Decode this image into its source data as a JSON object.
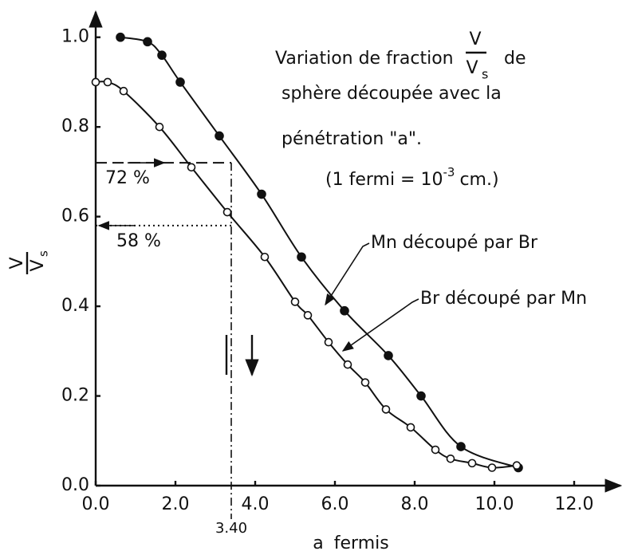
{
  "chart_data": {
    "type": "line",
    "title": {
      "lines": [
        "Variation de fraction",
        "de",
        "sphère découpée avec la",
        "pénétration \"a\"."
      ],
      "fraction": {
        "numerator": "V",
        "denominator": "V",
        "subscript": "s"
      }
    },
    "note": {
      "text": "(1 fermi = 10",
      "superscript": "-3",
      "after": "cm.)"
    },
    "x_label": "a   fermis",
    "y_label": {
      "numerator": "V",
      "denominator": "V",
      "subscript": "s"
    },
    "series": [
      {
        "name": "Mn découpé par Br",
        "color": "#111111",
        "marker": "filled",
        "x": [
          0.62,
          1.3,
          1.66,
          2.12,
          3.1,
          4.16,
          5.16,
          6.24,
          7.34,
          8.16,
          9.16,
          10.6
        ],
        "values": [
          1.0,
          0.99,
          0.96,
          0.9,
          0.78,
          0.65,
          0.51,
          0.39,
          0.29,
          0.2,
          0.087,
          0.04
        ]
      },
      {
        "name": "Br découpé par Mn",
        "color": "#111111",
        "marker": "open",
        "x": [
          0,
          0.3,
          0.7,
          1.6,
          2.4,
          3.3,
          4.24,
          5.0,
          5.32,
          5.84,
          6.32,
          6.76,
          7.28,
          7.9,
          8.52,
          8.9,
          9.44,
          9.94,
          10.56
        ],
        "values": [
          0.9,
          0.9,
          0.88,
          0.8,
          0.71,
          0.61,
          0.51,
          0.41,
          0.38,
          0.32,
          0.27,
          0.23,
          0.17,
          0.13,
          0.08,
          0.06,
          0.05,
          0.04,
          0.045
        ]
      }
    ],
    "reference_lines": [
      {
        "label": "72 %",
        "x": 3.4,
        "y": 0.72,
        "style": "dashed"
      },
      {
        "label": "58 %",
        "x": 3.4,
        "y": 0.58,
        "style": "dotted"
      },
      {
        "label": "3.40",
        "x": 3.4,
        "style": "dashdot"
      }
    ],
    "xlim": [
      0,
      13.2
    ],
    "ylim": [
      0,
      1.06
    ],
    "xticks": [
      {
        "value": 0,
        "label": "0.0"
      },
      {
        "value": 2,
        "label": "2.0"
      },
      {
        "value": 4,
        "label": "4.0"
      },
      {
        "value": 6,
        "label": "6.0"
      },
      {
        "value": 8,
        "label": "8.0"
      },
      {
        "value": 10,
        "label": "10.0"
      },
      {
        "value": 12,
        "label": "12.0"
      }
    ],
    "yticks": [
      {
        "value": 0,
        "label": "0.0"
      },
      {
        "value": 0.2,
        "label": "0.2"
      },
      {
        "value": 0.4,
        "label": "0.4"
      },
      {
        "value": 0.6,
        "label": "0.6"
      },
      {
        "value": 0.8,
        "label": "0.8"
      },
      {
        "value": 1.0,
        "label": "1.0"
      }
    ],
    "grid": false
  }
}
